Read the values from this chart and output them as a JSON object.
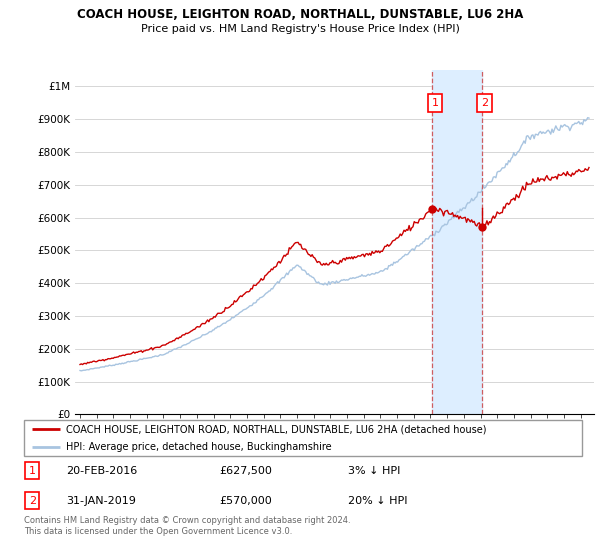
{
  "title": "COACH HOUSE, LEIGHTON ROAD, NORTHALL, DUNSTABLE, LU6 2HA",
  "subtitle": "Price paid vs. HM Land Registry's House Price Index (HPI)",
  "ylabel_ticks": [
    "£0",
    "£100K",
    "£200K",
    "£300K",
    "£400K",
    "£500K",
    "£600K",
    "£700K",
    "£800K",
    "£900K",
    "£1M"
  ],
  "ytick_values": [
    0,
    100000,
    200000,
    300000,
    400000,
    500000,
    600000,
    700000,
    800000,
    900000,
    1000000
  ],
  "ylim": [
    0,
    1050000
  ],
  "legend_line1": "COACH HOUSE, LEIGHTON ROAD, NORTHALL, DUNSTABLE, LU6 2HA (detached house)",
  "legend_line2": "HPI: Average price, detached house, Buckinghamshire",
  "sale1_date": "20-FEB-2016",
  "sale1_price": "£627,500",
  "sale1_hpi": "3% ↓ HPI",
  "sale2_date": "31-JAN-2019",
  "sale2_price": "£570,000",
  "sale2_hpi": "20% ↓ HPI",
  "footer": "Contains HM Land Registry data © Crown copyright and database right 2024.\nThis data is licensed under the Open Government Licence v3.0.",
  "hpi_color": "#a8c4e0",
  "sale_color": "#cc0000",
  "shade_color": "#ddeeff",
  "sale1_x": 2016.12,
  "sale1_y": 627500,
  "sale2_x": 2019.08,
  "sale2_y": 570000,
  "xmin": 1994.7,
  "xmax": 2025.8
}
